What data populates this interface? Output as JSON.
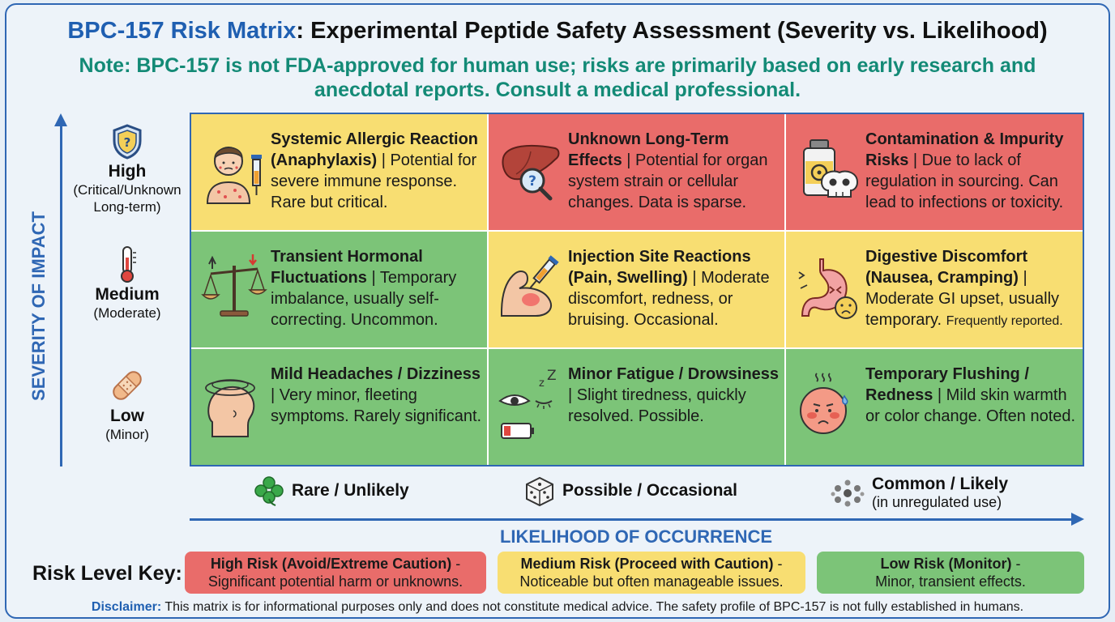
{
  "title": {
    "highlight": "BPC-157 Risk Matrix",
    "rest": ": Experimental Peptide Safety Assessment (Severity vs. Likelihood)"
  },
  "note": {
    "line1": "Note: BPC-157 is not FDA-approved for human use; risks are primarily based on early research and",
    "line2": "anecdotal reports. Consult a medical professional."
  },
  "y_axis": {
    "label": "SEVERITY OF IMPACT",
    "levels": [
      {
        "name": "High",
        "desc1": "(Critical/Unknown",
        "desc2": "Long-term)",
        "icon": "shield-question-icon"
      },
      {
        "name": "Medium",
        "desc1": "(Moderate)",
        "icon": "thermometer-icon"
      },
      {
        "name": "Low",
        "desc1": "(Minor)",
        "icon": "bandage-icon"
      }
    ]
  },
  "x_axis": {
    "label": "LIKELIHOOD OF OCCURRENCE",
    "levels": [
      {
        "name": "Rare / Unlikely",
        "icon": "clover-icon"
      },
      {
        "name": "Possible / Occasional",
        "icon": "dice-icon"
      },
      {
        "name": "Common / Likely",
        "desc": "(in unregulated use)",
        "icon": "dots-cluster-icon"
      }
    ]
  },
  "colors": {
    "high": "#e96c6a",
    "medium": "#f8de72",
    "low": "#7cc478",
    "accent": "#2f67b4",
    "note": "#138a76"
  },
  "cells": [
    {
      "row": "High",
      "col": "Rare / Unlikely",
      "risk": "medium",
      "icon": "allergic-person-syringe-icon",
      "title": "Systemic Allergic Reaction (Anaphylaxis)",
      "body": " | Potential for severe immune response. Rare but critical."
    },
    {
      "row": "High",
      "col": "Possible / Occasional",
      "risk": "high",
      "icon": "liver-magnifier-icon",
      "title": "Unknown Long-Term Effects",
      "body": " | Potential for organ system strain or cellular changes. Data is sparse."
    },
    {
      "row": "High",
      "col": "Common / Likely",
      "risk": "high",
      "icon": "biohazard-vial-skull-icon",
      "title": "Contamination & Impurity Risks",
      "body": " | Due to lack of regulation in sourcing. Can lead to infections or toxicity."
    },
    {
      "row": "Medium",
      "col": "Rare / Unlikely",
      "risk": "low",
      "icon": "balance-scale-icon",
      "title": "Transient Hormonal Fluctuations",
      "body": " | Temporary imbalance, usually self-correcting. Uncommon."
    },
    {
      "row": "Medium",
      "col": "Possible / Occasional",
      "risk": "medium",
      "icon": "arm-injection-icon",
      "title": "Injection Site Reactions (Pain, Swelling)",
      "body": " | Moderate discomfort, redness, or bruising. Occasional."
    },
    {
      "row": "Medium",
      "col": "Common / Likely",
      "risk": "medium",
      "icon": "stomach-upset-icon",
      "title": "Digestive Discomfort (Nausea, Cramping)",
      "body": " | Moderate GI upset, usually temporary. ",
      "small": "Frequently reported."
    },
    {
      "row": "Low",
      "col": "Rare / Unlikely",
      "risk": "low",
      "icon": "dizzy-head-icon",
      "title": "Mild Headaches / Dizziness",
      "body": " | Very minor, fleeting symptoms. Rarely significant."
    },
    {
      "row": "Low",
      "col": "Possible / Occasional",
      "risk": "low",
      "icon": "sleepy-eye-battery-icon",
      "title": "Minor Fatigue / Drowsiness",
      "body": " | Slight tiredness, quickly resolved. Possible."
    },
    {
      "row": "Low",
      "col": "Common / Likely",
      "risk": "low",
      "icon": "flushed-face-icon",
      "title": "Temporary Flushing / Redness",
      "body": " | Mild skin warmth or color change. Often noted."
    }
  ],
  "key": {
    "label": "Risk Level Key:",
    "items": [
      {
        "title": "High Risk (Avoid/Extreme Caution)",
        "suffix": " -",
        "desc": "Significant potential harm or unknowns."
      },
      {
        "title": "Medium Risk (Proceed with Caution)",
        "suffix": " -",
        "desc": "Noticeable but often manageable issues."
      },
      {
        "title": "Low Risk (Monitor)",
        "suffix": " -",
        "desc": "Minor, transient effects."
      }
    ]
  },
  "disclaimer": {
    "label": "Disclaimer:",
    "text": " This matrix is for informational purposes only and does not constitute medical advice. The safety profile of BPC-157 is not fully established in humans."
  }
}
